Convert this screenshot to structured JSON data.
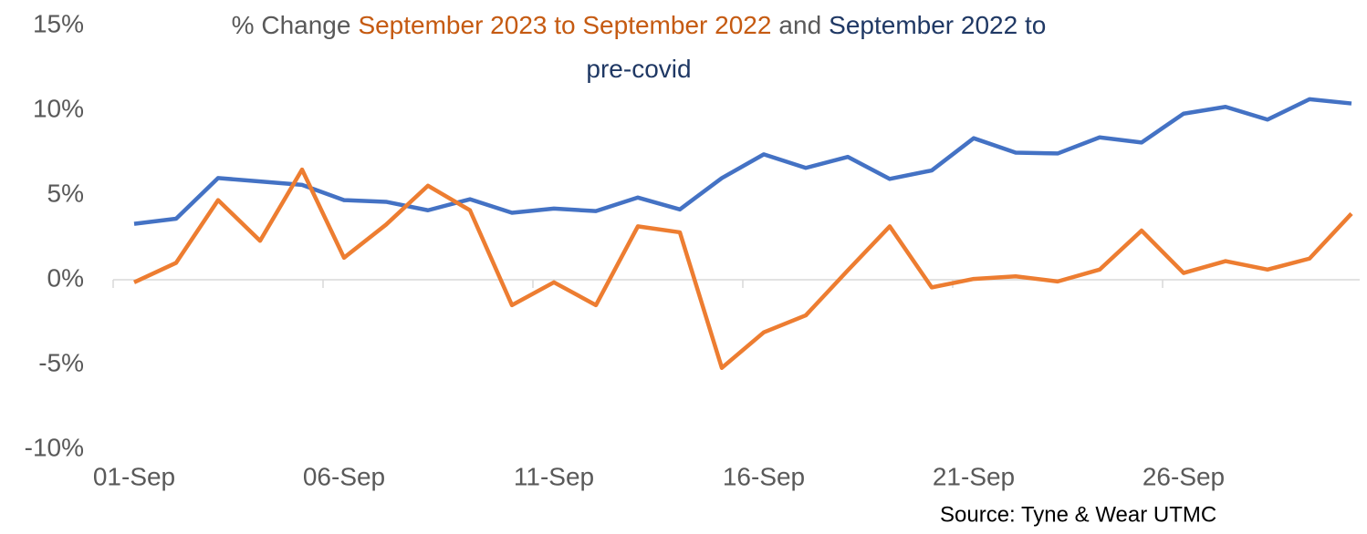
{
  "chart_data": {
    "type": "line",
    "title_lines": [
      [
        {
          "text": "% Change",
          "color": "#595959"
        },
        {
          "text": "September 2023 to September 2022",
          "color": "#c55a11"
        },
        {
          "text": "and",
          "color": "#595959"
        },
        {
          "text": "September 2022 to",
          "color": "#1f3864"
        }
      ],
      [
        {
          "text": "pre-covid",
          "color": "#1f3864"
        }
      ]
    ],
    "source": "Source: Tyne & Wear UTMC",
    "categories": [
      "01-Sep",
      null,
      null,
      null,
      null,
      "06-Sep",
      null,
      null,
      null,
      null,
      "11-Sep",
      null,
      null,
      null,
      null,
      "16-Sep",
      null,
      null,
      null,
      null,
      "21-Sep",
      null,
      null,
      null,
      null,
      "26-Sep",
      null,
      null,
      null,
      null
    ],
    "series": [
      {
        "color": "#4472c4",
        "values": [
          3.3,
          3.6,
          6.0,
          5.8,
          5.6,
          4.7,
          4.6,
          4.1,
          4.75,
          3.95,
          4.2,
          4.05,
          4.85,
          4.15,
          6.0,
          7.4,
          6.6,
          7.25,
          5.95,
          6.45,
          8.35,
          7.5,
          7.45,
          8.4,
          8.1,
          9.8,
          10.2,
          9.45,
          10.65,
          10.4
        ]
      },
      {
        "color": "#ed7d31",
        "values": [
          -0.15,
          1.0,
          4.7,
          2.3,
          6.5,
          1.3,
          3.25,
          5.55,
          4.1,
          -1.5,
          -0.15,
          -1.5,
          3.15,
          2.8,
          -5.2,
          -3.1,
          -2.1,
          0.55,
          3.15,
          -0.45,
          0.05,
          0.2,
          -0.1,
          0.6,
          2.9,
          0.4,
          1.1,
          0.6,
          1.25,
          3.9
        ]
      }
    ],
    "ylim": [
      -10,
      15
    ],
    "yticks": [
      {
        "value": -10,
        "label": "-10%"
      },
      {
        "value": -5,
        "label": "-5%"
      },
      {
        "value": 0,
        "label": "0%"
      },
      {
        "value": 5,
        "label": "5%"
      },
      {
        "value": 10,
        "label": "10%"
      },
      {
        "value": 15,
        "label": "15%"
      }
    ],
    "grid": false
  }
}
